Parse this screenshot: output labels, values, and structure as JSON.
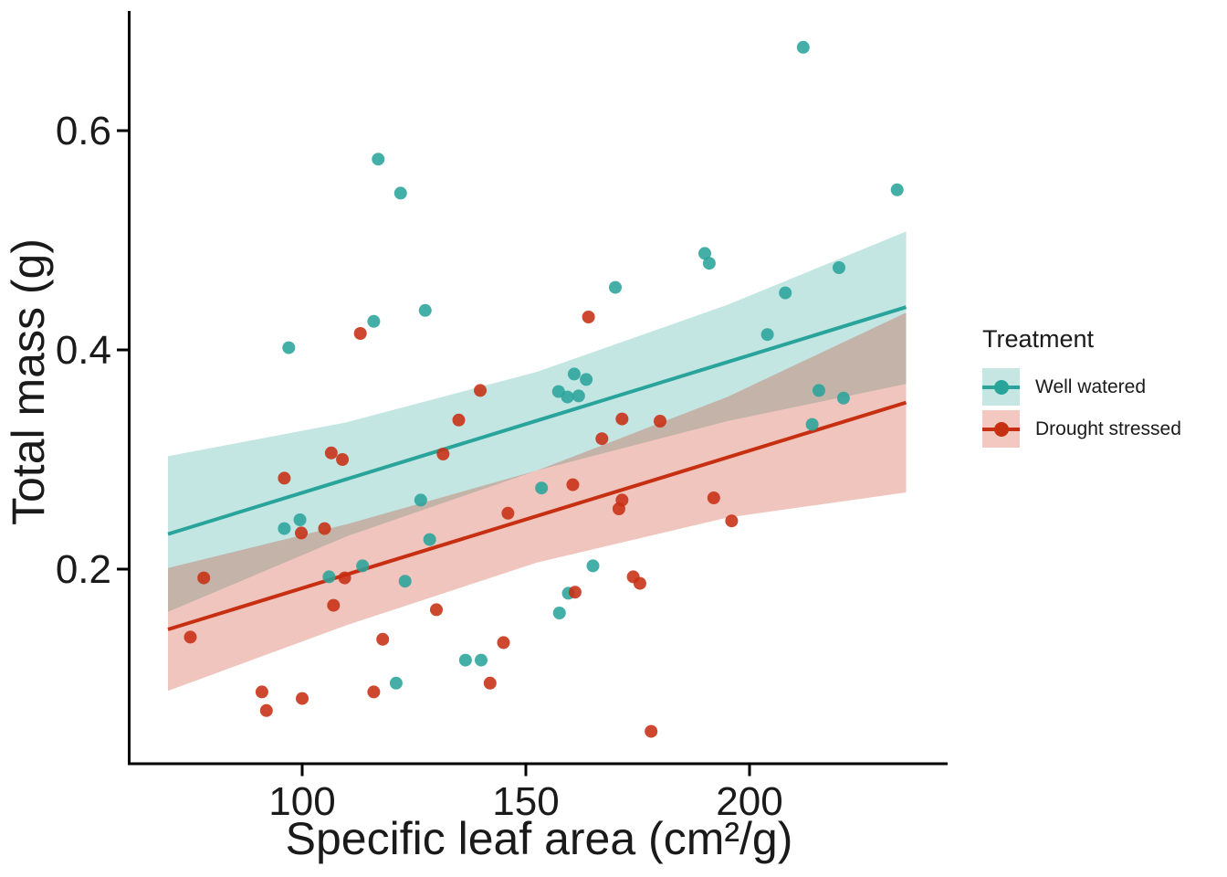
{
  "figure": {
    "background": "#ffffff",
    "axis_line_color": "#000000",
    "tick_text_color": "#1a1a1a"
  },
  "chart_data": {
    "type": "scatter",
    "title": "",
    "xlabel": "Specific leaf area (cm²/g)",
    "ylabel": "Total mass (g)",
    "x_ticks": [
      100,
      150,
      200
    ],
    "y_ticks": [
      0.2,
      0.4,
      0.6
    ],
    "xlim": [
      62,
      243
    ],
    "ylim": [
      0.02,
      0.71
    ],
    "grid": false,
    "legend": {
      "title": "Treatment",
      "position": "right",
      "entries": [
        {
          "label": "Well watered",
          "color": "#29A49B",
          "key_fill": "#C5E6E2"
        },
        {
          "label": "Drought stressed",
          "color": "#C72F12",
          "key_fill": "#F2C8C0"
        }
      ]
    },
    "series": [
      {
        "name": "Well watered",
        "color": "#29A49B",
        "marker": "circle",
        "points": [
          [
            117,
            0.574
          ],
          [
            122,
            0.543
          ],
          [
            127.5,
            0.436
          ],
          [
            116,
            0.426
          ],
          [
            97,
            0.402
          ],
          [
            96,
            0.237
          ],
          [
            99.5,
            0.245
          ],
          [
            126.5,
            0.263
          ],
          [
            113.5,
            0.203
          ],
          [
            106,
            0.193
          ],
          [
            123,
            0.189
          ],
          [
            121,
            0.096
          ],
          [
            136.5,
            0.117
          ],
          [
            140,
            0.117
          ],
          [
            157.5,
            0.16
          ],
          [
            159.5,
            0.178
          ],
          [
            165,
            0.203
          ],
          [
            160.8,
            0.378
          ],
          [
            163.5,
            0.373
          ],
          [
            157.3,
            0.362
          ],
          [
            159.3,
            0.357
          ],
          [
            161.8,
            0.358
          ],
          [
            170,
            0.457
          ],
          [
            190,
            0.488
          ],
          [
            191,
            0.479
          ],
          [
            204,
            0.414
          ],
          [
            208,
            0.452
          ],
          [
            212,
            0.676
          ],
          [
            220,
            0.475
          ],
          [
            233,
            0.546
          ],
          [
            215.5,
            0.363
          ],
          [
            221,
            0.356
          ],
          [
            214,
            0.332
          ],
          [
            153.5,
            0.274
          ],
          [
            128.5,
            0.227
          ]
        ],
        "regression_line": {
          "x": [
            70,
            235
          ],
          "y": [
            0.232,
            0.439
          ]
        },
        "ci_ribbon": [
          {
            "x": 70,
            "top": 0.303,
            "bottom": 0.161
          },
          {
            "x": 110,
            "top": 0.334,
            "bottom": 0.23
          },
          {
            "x": 152.5,
            "top": 0.38,
            "bottom": 0.29
          },
          {
            "x": 195,
            "top": 0.441,
            "bottom": 0.335
          },
          {
            "x": 235,
            "top": 0.508,
            "bottom": 0.369
          }
        ]
      },
      {
        "name": "Drought stressed",
        "color": "#C72F12",
        "marker": "circle",
        "points": [
          [
            113,
            0.415
          ],
          [
            139.8,
            0.363
          ],
          [
            135,
            0.336
          ],
          [
            106.5,
            0.306
          ],
          [
            109,
            0.3
          ],
          [
            131.5,
            0.305
          ],
          [
            96,
            0.283
          ],
          [
            99.8,
            0.233
          ],
          [
            105,
            0.237
          ],
          [
            78,
            0.192
          ],
          [
            75,
            0.138
          ],
          [
            109.5,
            0.192
          ],
          [
            107,
            0.167
          ],
          [
            130,
            0.163
          ],
          [
            118,
            0.136
          ],
          [
            145,
            0.133
          ],
          [
            142,
            0.096
          ],
          [
            116,
            0.088
          ],
          [
            91,
            0.088
          ],
          [
            100,
            0.082
          ],
          [
            92,
            0.071
          ],
          [
            164,
            0.43
          ],
          [
            171.5,
            0.337
          ],
          [
            180,
            0.335
          ],
          [
            167,
            0.319
          ],
          [
            160.5,
            0.277
          ],
          [
            171.5,
            0.263
          ],
          [
            170.8,
            0.255
          ],
          [
            192,
            0.265
          ],
          [
            196,
            0.244
          ],
          [
            174,
            0.193
          ],
          [
            175.5,
            0.187
          ],
          [
            161,
            0.179
          ],
          [
            178,
            0.052
          ],
          [
            146,
            0.251
          ]
        ],
        "regression_line": {
          "x": [
            70,
            235
          ],
          "y": [
            0.145,
            0.352
          ]
        },
        "ci_ribbon": [
          {
            "x": 70,
            "top": 0.201,
            "bottom": 0.089
          },
          {
            "x": 110,
            "top": 0.241,
            "bottom": 0.149
          },
          {
            "x": 152.5,
            "top": 0.29,
            "bottom": 0.206
          },
          {
            "x": 195,
            "top": 0.357,
            "bottom": 0.247
          },
          {
            "x": 235,
            "top": 0.434,
            "bottom": 0.27
          }
        ]
      }
    ]
  }
}
